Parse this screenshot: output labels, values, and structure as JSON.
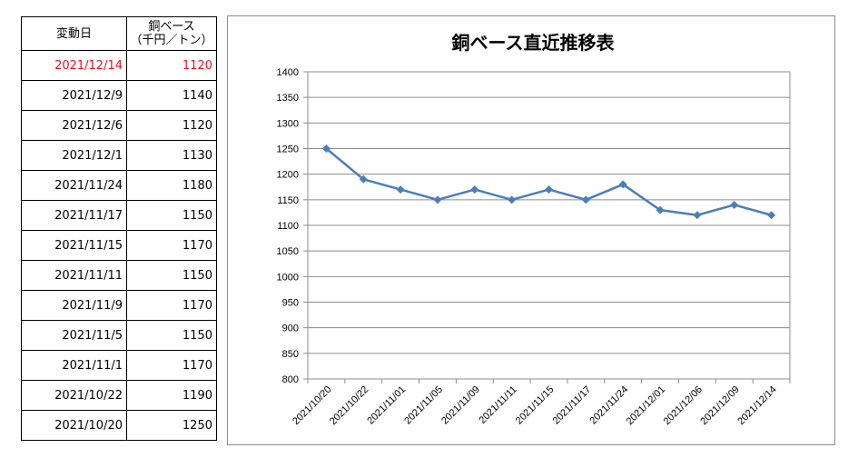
{
  "table": {
    "header_date": "変動日",
    "header_price_line1": "銅ベース",
    "header_price_line2": "（千円／トン）",
    "rows": [
      {
        "date": "2021/12/14",
        "value": "1120",
        "highlight": true
      },
      {
        "date": "2021/12/9",
        "value": "1140"
      },
      {
        "date": "2021/12/6",
        "value": "1120"
      },
      {
        "date": "2021/12/1",
        "value": "1130"
      },
      {
        "date": "2021/11/24",
        "value": "1180"
      },
      {
        "date": "2021/11/17",
        "value": "1150"
      },
      {
        "date": "2021/11/15",
        "value": "1170"
      },
      {
        "date": "2021/11/11",
        "value": "1150"
      },
      {
        "date": "2021/11/9",
        "value": "1170"
      },
      {
        "date": "2021/11/5",
        "value": "1150"
      },
      {
        "date": "2021/11/1",
        "value": "1170"
      },
      {
        "date": "2021/10/22",
        "value": "1190"
      },
      {
        "date": "2021/10/20",
        "value": "1250"
      }
    ],
    "highlight_color": "#e8141a"
  },
  "chart_data": {
    "type": "line",
    "title": "銅ベース直近推移表",
    "xlabel": "",
    "ylabel": "",
    "categories": [
      "2021/10/20",
      "2021/10/22",
      "2021/11/01",
      "2021/11/05",
      "2021/11/09",
      "2021/11/11",
      "2021/11/15",
      "2021/11/17",
      "2021/11/24",
      "2021/12/01",
      "2021/12/06",
      "2021/12/09",
      "2021/12/14"
    ],
    "series": [
      {
        "values": [
          1250,
          1190,
          1170,
          1150,
          1170,
          1150,
          1170,
          1150,
          1180,
          1130,
          1120,
          1140,
          1120
        ],
        "color": "#4a7ebb"
      }
    ],
    "ylim": [
      800,
      1400
    ],
    "yticks": [
      800,
      850,
      900,
      950,
      1000,
      1050,
      1100,
      1150,
      1200,
      1250,
      1300,
      1350,
      1400
    ],
    "grid": true,
    "legend": "none",
    "marker": "diamond"
  }
}
